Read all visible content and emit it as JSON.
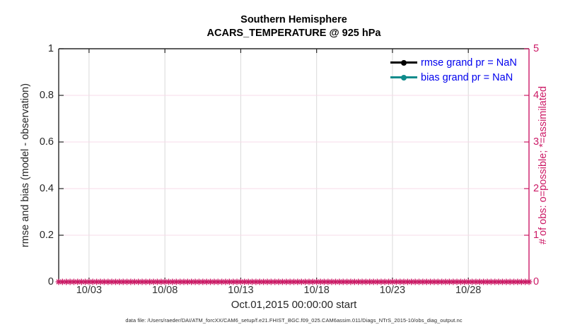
{
  "figure": {
    "background": "#ffffff",
    "legend_text_color": "#0000ee",
    "axis_color_left": "#262626",
    "axis_color_right": "#cc1a66",
    "grid_color_vertical": "#d9d9d9",
    "grid_color_horizontal": "#f7dbe8"
  },
  "chart_data": {
    "type": "line",
    "title": "Southern Hemisphere",
    "subtitle": "ACARS_TEMPERATURE @ 925 hPa",
    "x_axis": {
      "label": "Oct.01,2015 00:00:00 start",
      "range_days": [
        0,
        31
      ],
      "tick_days": [
        2,
        7,
        12,
        17,
        22,
        27
      ],
      "tick_labels": [
        "10/03",
        "10/08",
        "10/13",
        "10/18",
        "10/23",
        "10/28"
      ]
    },
    "y_left": {
      "label": "rmse and bias (model - observation)",
      "lim": [
        0,
        1
      ],
      "ticks": [
        0,
        0.2,
        0.4,
        0.6,
        0.8,
        1
      ],
      "tick_labels": [
        "0",
        "0.2",
        "0.4",
        "0.6",
        "0.8",
        "1"
      ],
      "color": "#262626"
    },
    "y_right": {
      "label": "# of obs: o=possible; *=assimilated",
      "lim": [
        0,
        5
      ],
      "ticks": [
        0,
        1,
        2,
        3,
        4,
        5
      ],
      "tick_labels": [
        "0",
        "1",
        "2",
        "3",
        "4",
        "5"
      ],
      "color": "#cc1a66"
    },
    "grid": true,
    "legend_position": "top-right-inside",
    "series": [
      {
        "name": "rmse",
        "legend": "rmse grand pr = NaN",
        "color": "#000000",
        "marker": "point",
        "values": "NaN"
      },
      {
        "name": "bias",
        "legend": "bias grand pr = NaN",
        "color": "#0f8b8b",
        "marker": "point",
        "values": "NaN"
      },
      {
        "name": "obs-assimilated",
        "marker": "asterisk",
        "color": "#cc1a66",
        "x_days": {
          "start": 0,
          "end": 31,
          "step": 0.25
        },
        "y_constant": 0
      }
    ],
    "caption": "data file: /Users/raeder/DAI/ATM_forcXX/CAM6_setup/f.e21.FHIST_BGC.f09_025.CAM6assim.011/Diags_NTrS_2015-10/obs_diag_output.nc"
  }
}
